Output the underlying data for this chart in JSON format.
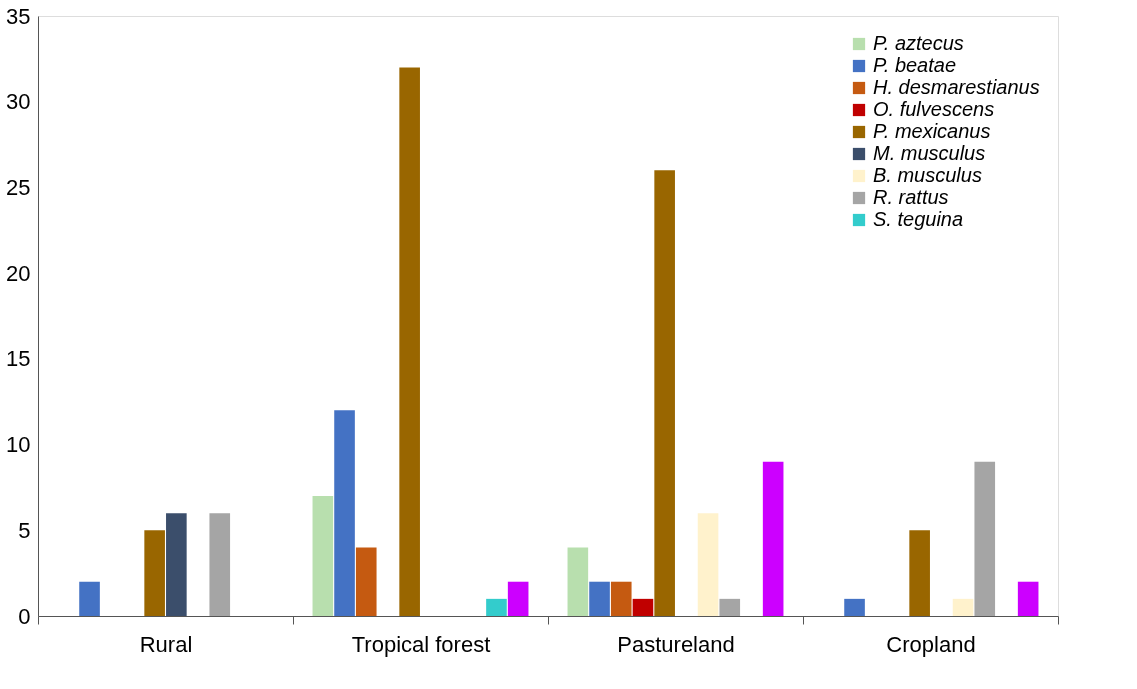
{
  "chart_data": {
    "type": "bar",
    "categories": [
      "Rural",
      "Tropical forest",
      "Pastureland",
      "Cropland"
    ],
    "series": [
      {
        "name": "P. aztecus",
        "color": "#b8dfae",
        "values": [
          0,
          7,
          4,
          0
        ]
      },
      {
        "name": "P. beatae",
        "color": "#4472c4",
        "values": [
          2,
          12,
          2,
          1
        ]
      },
      {
        "name": "H. desmarestianus",
        "color": "#c55a11",
        "values": [
          0,
          4,
          2,
          0
        ]
      },
      {
        "name": "O. fulvescens",
        "color": "#c00000",
        "values": [
          0,
          0,
          1,
          0
        ]
      },
      {
        "name": "P. mexicanus",
        "color": "#996600",
        "values": [
          5,
          32,
          26,
          5
        ]
      },
      {
        "name": "M. musculus",
        "color": "#3b4e6b",
        "values": [
          6,
          0,
          0,
          0
        ]
      },
      {
        "name": "B. musculus",
        "color": "#fff2cc",
        "values": [
          0,
          0,
          6,
          1
        ]
      },
      {
        "name": "R. rattus",
        "color": "#a5a5a5",
        "values": [
          6,
          0,
          1,
          9
        ]
      },
      {
        "name": "S. teguina",
        "color": "#33cccc",
        "values": [
          0,
          1,
          0,
          0
        ]
      },
      {
        "color": "#cc00ff",
        "values": [
          0,
          2,
          9,
          2
        ]
      }
    ],
    "ylim": [
      0,
      35
    ],
    "yticks": [
      0,
      5,
      10,
      15,
      20,
      25,
      30,
      35
    ],
    "grid": false,
    "legend": "top right"
  }
}
